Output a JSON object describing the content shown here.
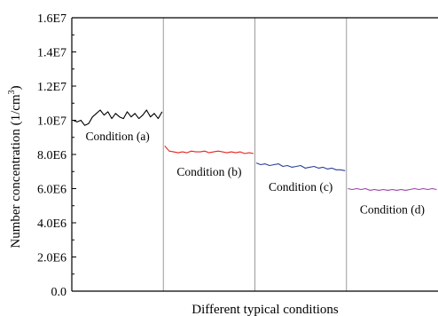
{
  "chart_data": {
    "type": "line",
    "title": "",
    "xlabel": "Different typical  conditions",
    "ylabel_main": "Number concentration (1/cm",
    "ylabel_sup": "3",
    "ylabel_end": ")",
    "ylim": [
      0,
      16000000
    ],
    "yticks": [
      {
        "value": 0,
        "label": "0.0"
      },
      {
        "value": 2000000,
        "label": "2.0E6"
      },
      {
        "value": 4000000,
        "label": "4.0E6"
      },
      {
        "value": 6000000,
        "label": "6.0E6"
      },
      {
        "value": 8000000,
        "label": "8.0E6"
      },
      {
        "value": 10000000,
        "label": "1.0E7"
      },
      {
        "value": 12000000,
        "label": "1.2E7"
      },
      {
        "value": 14000000,
        "label": "1.4E7"
      },
      {
        "value": 16000000,
        "label": "1.6E7"
      }
    ],
    "grid": false,
    "segments": [
      {
        "label": "Condition (a)",
        "color": "#000000",
        "values": [
          10000000,
          9900000,
          10000000,
          9700000,
          9800000,
          10200000,
          10400000,
          10600000,
          10300000,
          10500000,
          10100000,
          10400000,
          10200000,
          10100000,
          10500000,
          10200000,
          10400000,
          10100000,
          10300000,
          10600000,
          10200000,
          10400000,
          10100000,
          10500000
        ]
      },
      {
        "label": "Condition (b)",
        "color": "#e8231e",
        "values": [
          8500000,
          8200000,
          8150000,
          8100000,
          8150000,
          8100000,
          8200000,
          8150000,
          8150000,
          8200000,
          8100000,
          8150000,
          8200000,
          8150000,
          8100000,
          8150000,
          8100000,
          8150000,
          8050000,
          8100000,
          8050000
        ]
      },
      {
        "label": "Condition (c)",
        "color": "#2a3f9a",
        "values": [
          7500000,
          7400000,
          7450000,
          7350000,
          7400000,
          7450000,
          7300000,
          7350000,
          7250000,
          7300000,
          7350000,
          7200000,
          7250000,
          7300000,
          7200000,
          7250000,
          7150000,
          7200000,
          7100000,
          7100000,
          7050000
        ]
      },
      {
        "label": "Condition (d)",
        "color": "#9a3fa8",
        "values": [
          6000000,
          5950000,
          6000000,
          5950000,
          6000000,
          5900000,
          5950000,
          5900000,
          5950000,
          5900000,
          5950000,
          5900000,
          5950000,
          5900000,
          5950000,
          6000000,
          5950000,
          6000000,
          5950000,
          6000000,
          5950000
        ]
      }
    ]
  }
}
